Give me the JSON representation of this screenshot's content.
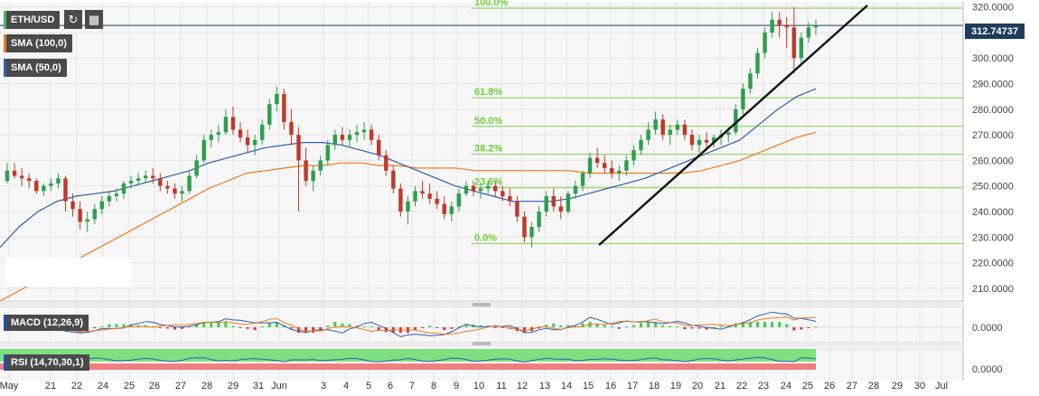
{
  "header": {
    "symbol": "ETH/USD",
    "refresh_icon": "refresh-icon",
    "calendar_icon": "calendar-icon"
  },
  "legend": [
    {
      "label": "SMA (100,0)",
      "color": "#f07a1c"
    },
    {
      "label": "SMA (50,0)",
      "color": "#2f5fb3"
    }
  ],
  "current_price": "312.74737",
  "chart_data": [
    {
      "type": "candlestick",
      "x_tick_labels": [
        "May",
        "21",
        "22",
        "24",
        "25",
        "26",
        "27",
        "28",
        "29",
        "31",
        "Jun",
        "3",
        "4",
        "5",
        "6",
        "7",
        "8",
        "9",
        "10",
        "11",
        "12",
        "13",
        "14",
        "15",
        "16",
        "17",
        "18",
        "19",
        "20",
        "21",
        "22",
        "23",
        "24",
        "25",
        "26",
        "27",
        "28",
        "29",
        "30",
        "Jul"
      ],
      "y_tick_labels": [
        "320.0000",
        "310.0000",
        "300.0000",
        "290.0000",
        "280.0000",
        "270.0000",
        "260.0000",
        "250.0000",
        "240.0000",
        "230.0000",
        "220.0000",
        "210.0000"
      ],
      "ylim": [
        205,
        322
      ],
      "last_price": 312.74737,
      "candles": [
        [
          252,
          259,
          251,
          256
        ],
        [
          256,
          259,
          253,
          254
        ],
        [
          254,
          257,
          250,
          253
        ],
        [
          253,
          255,
          249,
          252
        ],
        [
          252,
          253,
          247,
          248
        ],
        [
          248,
          251,
          246,
          250
        ],
        [
          250,
          253,
          248,
          251
        ],
        [
          251,
          255,
          249,
          253
        ],
        [
          253,
          254,
          240,
          244
        ],
        [
          244,
          247,
          238,
          241
        ],
        [
          241,
          244,
          233,
          236
        ],
        [
          236,
          240,
          232,
          237
        ],
        [
          237,
          243,
          235,
          241
        ],
        [
          241,
          246,
          239,
          244
        ],
        [
          244,
          248,
          242,
          246
        ],
        [
          246,
          249,
          244,
          247
        ],
        [
          247,
          252,
          245,
          251
        ],
        [
          251,
          254,
          249,
          252
        ],
        [
          252,
          255,
          250,
          253
        ],
        [
          253,
          256,
          251,
          254
        ],
        [
          254,
          257,
          251,
          253
        ],
        [
          253,
          255,
          248,
          250
        ],
        [
          250,
          252,
          247,
          249
        ],
        [
          249,
          251,
          245,
          247
        ],
        [
          247,
          250,
          244,
          248
        ],
        [
          248,
          256,
          247,
          254
        ],
        [
          254,
          262,
          253,
          260
        ],
        [
          260,
          270,
          259,
          268
        ],
        [
          268,
          272,
          265,
          270
        ],
        [
          270,
          274,
          267,
          271
        ],
        [
          271,
          280,
          270,
          277
        ],
        [
          277,
          281,
          270,
          272
        ],
        [
          272,
          275,
          267,
          269
        ],
        [
          269,
          272,
          263,
          266
        ],
        [
          266,
          270,
          262,
          268
        ],
        [
          268,
          276,
          266,
          274
        ],
        [
          274,
          284,
          272,
          282
        ],
        [
          282,
          289,
          279,
          286
        ],
        [
          286,
          288,
          272,
          275
        ],
        [
          275,
          280,
          266,
          270
        ],
        [
          270,
          273,
          240,
          260
        ],
        [
          260,
          265,
          250,
          252
        ],
        [
          252,
          258,
          248,
          256
        ],
        [
          256,
          262,
          254,
          260
        ],
        [
          260,
          268,
          258,
          266
        ],
        [
          266,
          272,
          264,
          270
        ],
        [
          270,
          273,
          266,
          268
        ],
        [
          268,
          272,
          265,
          270
        ],
        [
          270,
          274,
          267,
          271
        ],
        [
          271,
          275,
          268,
          272
        ],
        [
          272,
          274,
          266,
          268
        ],
        [
          268,
          270,
          260,
          262
        ],
        [
          262,
          264,
          254,
          256
        ],
        [
          256,
          258,
          247,
          249
        ],
        [
          249,
          251,
          238,
          240
        ],
        [
          240,
          246,
          235,
          244
        ],
        [
          244,
          250,
          242,
          248
        ],
        [
          248,
          252,
          245,
          247
        ],
        [
          247,
          251,
          243,
          245
        ],
        [
          245,
          248,
          241,
          243
        ],
        [
          243,
          246,
          237,
          239
        ],
        [
          239,
          244,
          236,
          242
        ],
        [
          242,
          249,
          240,
          247
        ],
        [
          247,
          252,
          246,
          250
        ],
        [
          250,
          252,
          246,
          248
        ],
        [
          248,
          251,
          245,
          249
        ],
        [
          249,
          252,
          247,
          250
        ],
        [
          250,
          252,
          246,
          248
        ],
        [
          248,
          250,
          244,
          246
        ],
        [
          246,
          249,
          242,
          244
        ],
        [
          244,
          246,
          236,
          238
        ],
        [
          238,
          240,
          228,
          230
        ],
        [
          230,
          236,
          226,
          234
        ],
        [
          234,
          242,
          232,
          240
        ],
        [
          240,
          248,
          238,
          246
        ],
        [
          246,
          249,
          240,
          242
        ],
        [
          242,
          246,
          237,
          240
        ],
        [
          240,
          248,
          239,
          247
        ],
        [
          247,
          252,
          245,
          250
        ],
        [
          250,
          256,
          248,
          255
        ],
        [
          255,
          263,
          253,
          261
        ],
        [
          261,
          265,
          257,
          259
        ],
        [
          259,
          262,
          255,
          257
        ],
        [
          257,
          260,
          253,
          255
        ],
        [
          255,
          258,
          252,
          256
        ],
        [
          256,
          262,
          254,
          260
        ],
        [
          260,
          266,
          258,
          264
        ],
        [
          264,
          270,
          262,
          268
        ],
        [
          268,
          275,
          266,
          272
        ],
        [
          272,
          279,
          270,
          276
        ],
        [
          276,
          278,
          268,
          270
        ],
        [
          270,
          274,
          266,
          272
        ],
        [
          272,
          276,
          270,
          274
        ],
        [
          274,
          276,
          268,
          270
        ],
        [
          270,
          272,
          264,
          266
        ],
        [
          266,
          270,
          263,
          268
        ],
        [
          268,
          271,
          265,
          267
        ],
        [
          267,
          270,
          265,
          269
        ],
        [
          269,
          272,
          266,
          270
        ],
        [
          270,
          273,
          267,
          271
        ],
        [
          271,
          282,
          270,
          280
        ],
        [
          280,
          290,
          278,
          288
        ],
        [
          288,
          296,
          286,
          294
        ],
        [
          294,
          304,
          292,
          302
        ],
        [
          302,
          312,
          300,
          310
        ],
        [
          310,
          318,
          308,
          315
        ],
        [
          315,
          318,
          308,
          313
        ],
        [
          313,
          316,
          304,
          312
        ],
        [
          312,
          320,
          294,
          300
        ],
        [
          300,
          310,
          298,
          308
        ],
        [
          308,
          314,
          306,
          312
        ],
        [
          312,
          315,
          309,
          312.75
        ]
      ],
      "series": [
        {
          "name": "SMA (100,0)",
          "color": "#f07a1c",
          "values": [
            205,
            209,
            213,
            217,
            221,
            225,
            229,
            233,
            237,
            241,
            245,
            249,
            252,
            255,
            256,
            257,
            258,
            258,
            259,
            259,
            258,
            258,
            257,
            257,
            257,
            256,
            256,
            256,
            256,
            256,
            256,
            255,
            255,
            255,
            255,
            255,
            255,
            256,
            258,
            260,
            263,
            266,
            269,
            271
          ]
        },
        {
          "name": "SMA (50,0)",
          "color": "#2f5fb3",
          "values": [
            226,
            234,
            240,
            244,
            246,
            247,
            248,
            250,
            252,
            254,
            256,
            259,
            261,
            263,
            265,
            266,
            267,
            267,
            266,
            264,
            262,
            259,
            256,
            253,
            250,
            248,
            246,
            244,
            244,
            244,
            245,
            247,
            249,
            251,
            253,
            256,
            259,
            262,
            265,
            268,
            274,
            280,
            285,
            288
          ]
        }
      ],
      "fibonacci": [
        {
          "label": "100.0%",
          "value": 319.5
        },
        {
          "label": "61.8%",
          "value": 284.5
        },
        {
          "label": "50.0%",
          "value": 273.3
        },
        {
          "label": "38.2%",
          "value": 262.4
        },
        {
          "label": "23.6%",
          "value": 249.3
        },
        {
          "label": "0.0%",
          "value": 227.5
        }
      ]
    },
    {
      "type": "line",
      "label": "MACD (12,26,9)",
      "y_tick_labels": [
        "0.0000"
      ],
      "zero": 0
    },
    {
      "type": "line",
      "label": "RSI (14,70,30,1)",
      "y_tick_labels": [
        "0.0000"
      ],
      "levels": [
        70,
        30
      ]
    }
  ]
}
